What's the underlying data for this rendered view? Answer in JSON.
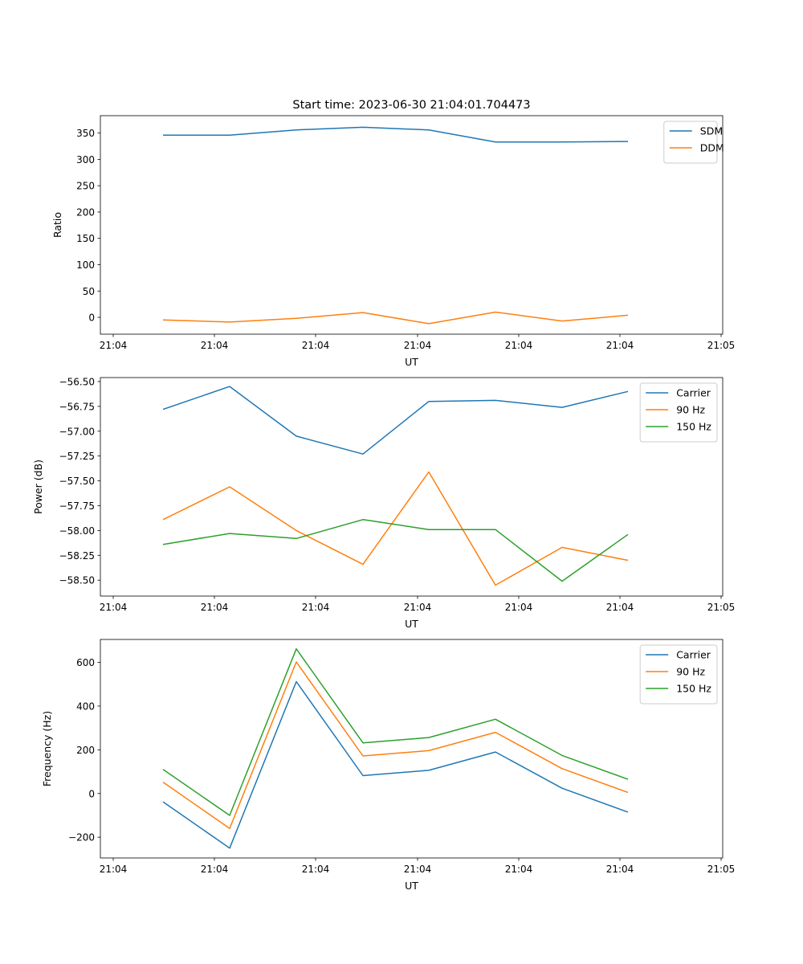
{
  "figure_title": "Start time: 2023-06-30 21:04:01.704473",
  "colors": {
    "blue": "#1f77b4",
    "orange": "#ff7f0e",
    "green": "#2ca02c"
  },
  "chart_data": [
    {
      "type": "line",
      "title": "Start time: 2023-06-30 21:04:01.704473",
      "xlabel": "UT",
      "ylabel": "Ratio",
      "x_tick_labels": [
        "21:04",
        "21:04",
        "21:04",
        "21:04",
        "21:04",
        "21:04",
        "21:05"
      ],
      "y_ticks": [
        0,
        50,
        100,
        150,
        200,
        250,
        300,
        350
      ],
      "y_tick_labels": [
        "0",
        "50",
        "100",
        "150",
        "200",
        "250",
        "300",
        "350"
      ],
      "ylim": [
        -32,
        383
      ],
      "legend_position": "upper right",
      "grid": false,
      "series": [
        {
          "name": "SDM",
          "color": "#1f77b4",
          "values": [
            346,
            346,
            356,
            361,
            356,
            333,
            333,
            334
          ]
        },
        {
          "name": "DDM",
          "color": "#ff7f0e",
          "values": [
            -5,
            -9,
            -2,
            9,
            -12,
            10,
            -7,
            4
          ]
        }
      ]
    },
    {
      "type": "line",
      "title": "",
      "xlabel": "UT",
      "ylabel": "Power (dB)",
      "x_tick_labels": [
        "21:04",
        "21:04",
        "21:04",
        "21:04",
        "21:04",
        "21:04",
        "21:05"
      ],
      "y_ticks": [
        -56.5,
        -56.75,
        -57.0,
        -57.25,
        -57.5,
        -57.75,
        -58.0,
        -58.25,
        -58.5
      ],
      "y_tick_labels": [
        "−56.50",
        "−56.75",
        "−57.00",
        "−57.25",
        "−57.50",
        "−57.75",
        "−58.00",
        "−58.25",
        "−58.50"
      ],
      "ylim": [
        -58.66,
        -56.46
      ],
      "legend_position": "upper right",
      "grid": false,
      "series": [
        {
          "name": "Carrier",
          "color": "#1f77b4",
          "values": [
            -56.78,
            -56.55,
            -57.05,
            -57.23,
            -56.7,
            -56.69,
            -56.76,
            -56.6
          ]
        },
        {
          "name": "90 Hz",
          "color": "#ff7f0e",
          "values": [
            -57.89,
            -57.56,
            -58.0,
            -58.34,
            -57.41,
            -58.55,
            -58.17,
            -58.3
          ]
        },
        {
          "name": "150 Hz",
          "color": "#2ca02c",
          "values": [
            -58.14,
            -58.03,
            -58.08,
            -57.89,
            -57.99,
            -57.99,
            -58.51,
            -58.04
          ]
        }
      ]
    },
    {
      "type": "line",
      "title": "",
      "xlabel": "UT",
      "ylabel": "Frequency (Hz)",
      "x_tick_labels": [
        "21:04",
        "21:04",
        "21:04",
        "21:04",
        "21:04",
        "21:04",
        "21:05"
      ],
      "y_ticks": [
        -200,
        0,
        200,
        400,
        600
      ],
      "y_tick_labels": [
        "−200",
        "0",
        "200",
        "400",
        "600"
      ],
      "ylim": [
        -295,
        705
      ],
      "legend_position": "upper right",
      "grid": false,
      "series": [
        {
          "name": "Carrier",
          "color": "#1f77b4",
          "values": [
            -38,
            -250,
            512,
            82,
            106,
            190,
            24,
            -85
          ]
        },
        {
          "name": "90 Hz",
          "color": "#ff7f0e",
          "values": [
            52,
            -160,
            602,
            172,
            196,
            280,
            114,
            5
          ]
        },
        {
          "name": "150 Hz",
          "color": "#2ca02c",
          "values": [
            110,
            -100,
            662,
            232,
            256,
            340,
            174,
            65
          ]
        }
      ]
    }
  ]
}
